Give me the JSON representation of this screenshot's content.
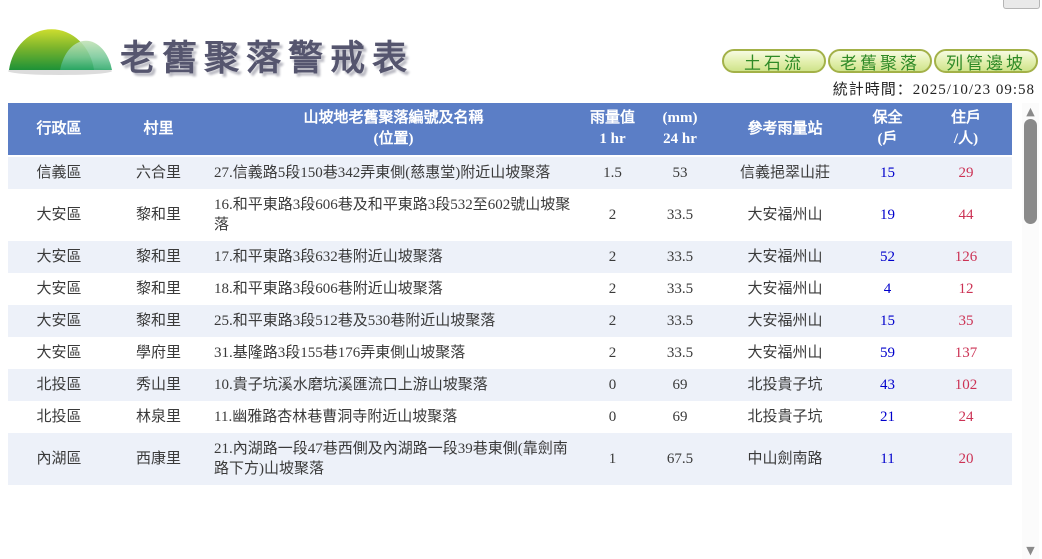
{
  "page": {
    "title": "老舊聚落警戒表",
    "stats_time": "統計時間：2025/10/23 09:58"
  },
  "nav_buttons": [
    {
      "label": "土石流"
    },
    {
      "label": "老舊聚落"
    },
    {
      "label": "列管邊坡"
    }
  ],
  "table": {
    "headers": {
      "district": "行政區",
      "village": "村里",
      "name_line1": "山坡地老舊聚落編號及名稱",
      "name_line2": "(位置)",
      "rain1_line1": "雨量值",
      "rain1_line2": "1 hr",
      "rain24_line1": "(mm)",
      "rain24_line2": "24 hr",
      "station": "參考雨量站",
      "protected_line1": "保全",
      "protected_line2": "(戶",
      "residents_line1": "住戶",
      "residents_line2": "/人)"
    },
    "rows": [
      {
        "district": "信義區",
        "village": "六合里",
        "name": "27.信義路5段150巷342弄東側(慈惠堂)附近山坡聚落",
        "rain_1hr": "1.5",
        "rain_24hr": "53",
        "station": "信義挹翠山莊",
        "protected": "15",
        "residents": "29"
      },
      {
        "district": "大安區",
        "village": "黎和里",
        "name": "16.和平東路3段606巷及和平東路3段532至602號山坡聚落",
        "rain_1hr": "2",
        "rain_24hr": "33.5",
        "station": "大安福州山",
        "protected": "19",
        "residents": "44"
      },
      {
        "district": "大安區",
        "village": "黎和里",
        "name": "17.和平東路3段632巷附近山坡聚落",
        "rain_1hr": "2",
        "rain_24hr": "33.5",
        "station": "大安福州山",
        "protected": "52",
        "residents": "126"
      },
      {
        "district": "大安區",
        "village": "黎和里",
        "name": "18.和平東路3段606巷附近山坡聚落",
        "rain_1hr": "2",
        "rain_24hr": "33.5",
        "station": "大安福州山",
        "protected": "4",
        "residents": "12"
      },
      {
        "district": "大安區",
        "village": "黎和里",
        "name": "25.和平東路3段512巷及530巷附近山坡聚落",
        "rain_1hr": "2",
        "rain_24hr": "33.5",
        "station": "大安福州山",
        "protected": "15",
        "residents": "35"
      },
      {
        "district": "大安區",
        "village": "學府里",
        "name": "31.基隆路3段155巷176弄東側山坡聚落",
        "rain_1hr": "2",
        "rain_24hr": "33.5",
        "station": "大安福州山",
        "protected": "59",
        "residents": "137"
      },
      {
        "district": "北投區",
        "village": "秀山里",
        "name": "10.貴子坑溪水磨坑溪匯流口上游山坡聚落",
        "rain_1hr": "0",
        "rain_24hr": "69",
        "station": "北投貴子坑",
        "protected": "43",
        "residents": "102"
      },
      {
        "district": "北投區",
        "village": "林泉里",
        "name": "11.幽雅路杏林巷曹洞寺附近山坡聚落",
        "rain_1hr": "0",
        "rain_24hr": "69",
        "station": "北投貴子坑",
        "protected": "21",
        "residents": "24"
      },
      {
        "district": "內湖區",
        "village": "西康里",
        "name": "21.內湖路一段47巷西側及內湖路一段39巷東側(靠劍南路下方)山坡聚落",
        "rain_1hr": "1",
        "rain_24hr": "67.5",
        "station": "中山劍南路",
        "protected": "11",
        "residents": "20"
      }
    ]
  },
  "colors": {
    "header_bg": "#5b7ec6",
    "row_alt_bg": "#edf1f9",
    "protected_text": "#0000cc",
    "residents_text": "#cc3355",
    "button_border": "#a3b148",
    "button_text": "#2f8a27",
    "title_text": "#55556e"
  },
  "scrollbar": {
    "up_glyph": "▲",
    "down_glyph": "▼"
  }
}
